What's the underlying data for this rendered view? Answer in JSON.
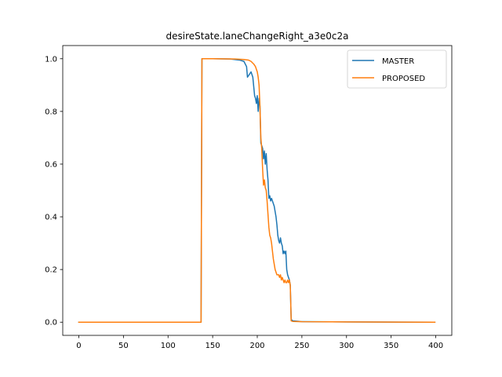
{
  "chart_data": {
    "type": "line",
    "title": "desireState.laneChangeRight_a3e0c2a",
    "xlabel": "",
    "ylabel": "",
    "xlim": [
      -18,
      418
    ],
    "ylim": [
      -0.05,
      1.05
    ],
    "xticks": [
      0,
      50,
      100,
      150,
      200,
      250,
      300,
      350,
      400
    ],
    "yticks": [
      0.0,
      0.2,
      0.4,
      0.6,
      0.8,
      1.0
    ],
    "xtick_labels": [
      "0",
      "50",
      "100",
      "150",
      "200",
      "250",
      "300",
      "350",
      "400"
    ],
    "ytick_labels": [
      "0.0",
      "0.2",
      "0.4",
      "0.6",
      "0.8",
      "1.0"
    ],
    "grid": false,
    "legend": "top-right",
    "series": [
      {
        "name": "MASTER",
        "color": "#1f77b4",
        "points": [
          [
            0,
            0.0
          ],
          [
            137,
            0.0
          ],
          [
            138,
            1.0
          ],
          [
            150,
            1.0
          ],
          [
            170,
            0.999
          ],
          [
            180,
            0.995
          ],
          [
            185,
            0.99
          ],
          [
            188,
            0.97
          ],
          [
            189,
            0.93
          ],
          [
            191,
            0.94
          ],
          [
            193,
            0.95
          ],
          [
            195,
            0.93
          ],
          [
            197,
            0.86
          ],
          [
            198,
            0.85
          ],
          [
            199,
            0.83
          ],
          [
            200,
            0.86
          ],
          [
            201,
            0.8
          ],
          [
            202,
            0.85
          ],
          [
            203,
            0.82
          ],
          [
            204,
            0.68
          ],
          [
            205,
            0.67
          ],
          [
            206,
            0.66
          ],
          [
            207,
            0.62
          ],
          [
            208,
            0.65
          ],
          [
            209,
            0.6
          ],
          [
            210,
            0.64
          ],
          [
            211,
            0.58
          ],
          [
            212,
            0.54
          ],
          [
            213,
            0.47
          ],
          [
            214,
            0.48
          ],
          [
            215,
            0.46
          ],
          [
            216,
            0.47
          ],
          [
            217,
            0.46
          ],
          [
            218,
            0.45
          ],
          [
            219,
            0.44
          ],
          [
            220,
            0.42
          ],
          [
            221,
            0.4
          ],
          [
            222,
            0.37
          ],
          [
            223,
            0.33
          ],
          [
            224,
            0.31
          ],
          [
            225,
            0.3
          ],
          [
            226,
            0.32
          ],
          [
            227,
            0.3
          ],
          [
            228,
            0.29
          ],
          [
            229,
            0.26
          ],
          [
            230,
            0.27
          ],
          [
            231,
            0.26
          ],
          [
            232,
            0.27
          ],
          [
            233,
            0.2
          ],
          [
            234,
            0.18
          ],
          [
            235,
            0.17
          ],
          [
            236,
            0.16
          ],
          [
            237,
            0.14
          ],
          [
            238,
            0.01
          ],
          [
            240,
            0.005
          ],
          [
            250,
            0.002
          ],
          [
            300,
            0.001
          ],
          [
            399,
            0.0
          ]
        ]
      },
      {
        "name": "PROPOSED",
        "color": "#ff7f0e",
        "points": [
          [
            0,
            0.0
          ],
          [
            137,
            0.0
          ],
          [
            138,
            1.0
          ],
          [
            150,
            1.0
          ],
          [
            175,
            0.999
          ],
          [
            185,
            0.997
          ],
          [
            190,
            0.995
          ],
          [
            193,
            0.99
          ],
          [
            196,
            0.98
          ],
          [
            198,
            0.97
          ],
          [
            200,
            0.95
          ],
          [
            201,
            0.93
          ],
          [
            202,
            0.9
          ],
          [
            203,
            0.82
          ],
          [
            204,
            0.7
          ],
          [
            205,
            0.66
          ],
          [
            206,
            0.58
          ],
          [
            207,
            0.52
          ],
          [
            208,
            0.54
          ],
          [
            209,
            0.51
          ],
          [
            210,
            0.5
          ],
          [
            211,
            0.46
          ],
          [
            212,
            0.41
          ],
          [
            213,
            0.36
          ],
          [
            214,
            0.33
          ],
          [
            215,
            0.32
          ],
          [
            216,
            0.3
          ],
          [
            217,
            0.27
          ],
          [
            218,
            0.24
          ],
          [
            219,
            0.22
          ],
          [
            220,
            0.2
          ],
          [
            221,
            0.19
          ],
          [
            222,
            0.18
          ],
          [
            223,
            0.18
          ],
          [
            224,
            0.18
          ],
          [
            225,
            0.17
          ],
          [
            226,
            0.18
          ],
          [
            227,
            0.16
          ],
          [
            228,
            0.17
          ],
          [
            229,
            0.16
          ],
          [
            230,
            0.15
          ],
          [
            231,
            0.16
          ],
          [
            232,
            0.15
          ],
          [
            233,
            0.15
          ],
          [
            234,
            0.16
          ],
          [
            235,
            0.15
          ],
          [
            236,
            0.16
          ],
          [
            237,
            0.14
          ],
          [
            238,
            0.005
          ],
          [
            240,
            0.003
          ],
          [
            250,
            0.002
          ],
          [
            300,
            0.001
          ],
          [
            399,
            0.0
          ]
        ]
      }
    ]
  }
}
